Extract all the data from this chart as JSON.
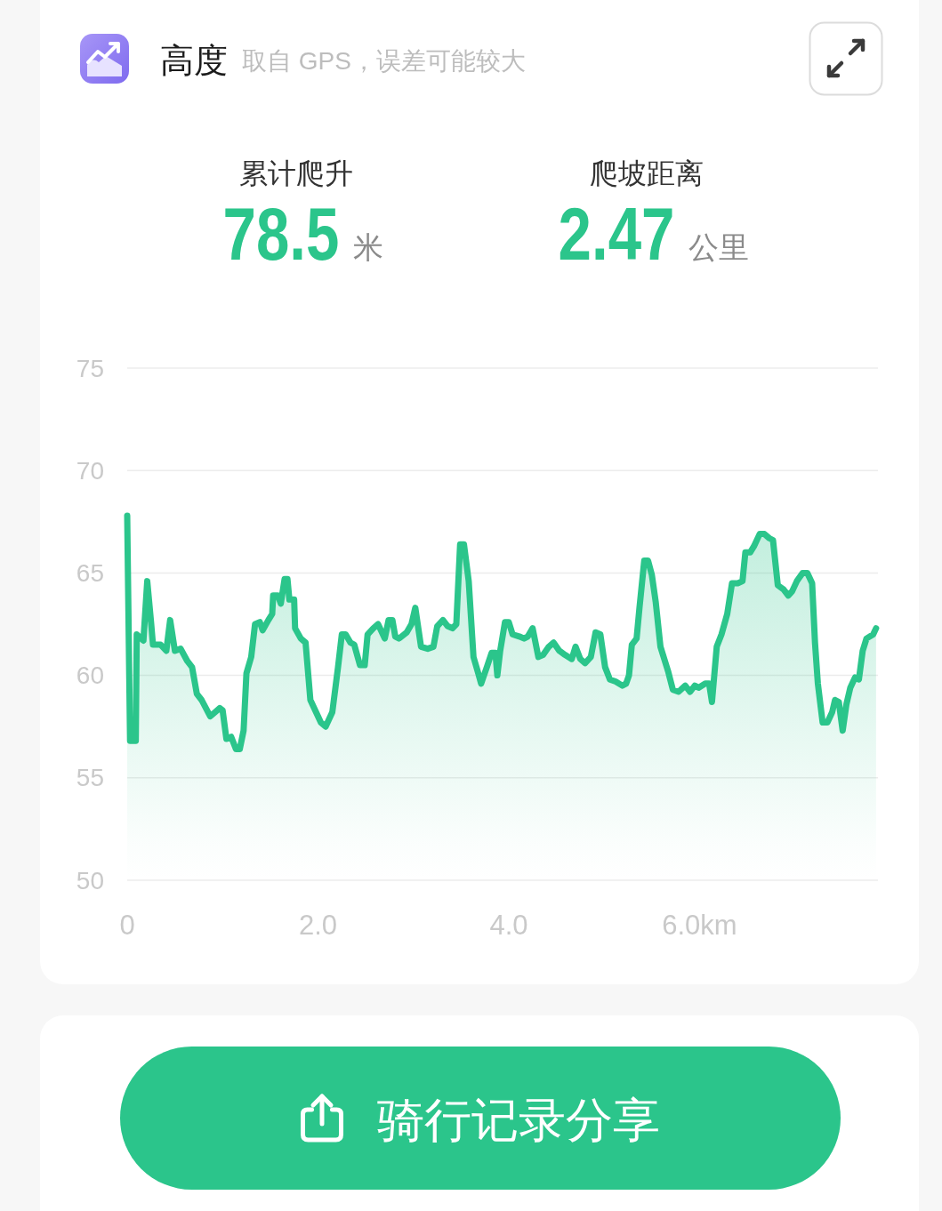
{
  "chart_data": {
    "type": "area",
    "title": "高度",
    "subtitle": "取自 GPS，误差可能较大",
    "annotations": [
      "累计爬升",
      "78.5",
      "米",
      "爬坡距离",
      "2.47",
      "公里",
      "骑行记录分享"
    ],
    "x": [
      0,
      0.03,
      0.09,
      0.1,
      0.17,
      0.21,
      0.25,
      0.27,
      0.35,
      0.41,
      0.45,
      0.5,
      0.56,
      0.63,
      0.68,
      0.73,
      0.78,
      0.87,
      0.92,
      0.97,
      1.0,
      1.04,
      1.09,
      1.14,
      1.18,
      1.22,
      1.25,
      1.3,
      1.34,
      1.39,
      1.42,
      1.48,
      1.52,
      1.53,
      1.58,
      1.61,
      1.65,
      1.68,
      1.7,
      1.75,
      1.76,
      1.82,
      1.87,
      1.92,
      2.03,
      2.08,
      2.15,
      2.21,
      2.25,
      2.29,
      2.34,
      2.38,
      2.44,
      2.49,
      2.52,
      2.58,
      2.63,
      2.7,
      2.74,
      2.78,
      2.81,
      2.85,
      2.93,
      2.98,
      3.02,
      3.08,
      3.15,
      3.21,
      3.25,
      3.31,
      3.36,
      3.41,
      3.45,
      3.49,
      3.53,
      3.58,
      3.63,
      3.68,
      3.71,
      3.77,
      3.82,
      3.86,
      3.88,
      3.91,
      3.96,
      4.0,
      4.04,
      4.11,
      4.16,
      4.2,
      4.25,
      4.31,
      4.36,
      4.42,
      4.47,
      4.53,
      4.59,
      4.66,
      4.7,
      4.75,
      4.8,
      4.86,
      4.91,
      4.96,
      5.01,
      5.06,
      5.12,
      5.19,
      5.23,
      5.26,
      5.29,
      5.34,
      5.37,
      5.42,
      5.46,
      5.5,
      5.54,
      5.59,
      5.67,
      5.72,
      5.78,
      5.85,
      5.9,
      5.95,
      5.99,
      6.06,
      6.1,
      6.13,
      6.18,
      6.23,
      6.29,
      6.34,
      6.4,
      6.45,
      6.48,
      6.53,
      6.57,
      6.63,
      6.68,
      6.73,
      6.77,
      6.82,
      6.88,
      6.93,
      6.97,
      7.02,
      7.08,
      7.13,
      7.18,
      7.21,
      7.24,
      7.29,
      7.34,
      7.39,
      7.42,
      7.46,
      7.5,
      7.54,
      7.58,
      7.63,
      7.67,
      7.71,
      7.75,
      7.82,
      7.85
    ],
    "values": [
      67.8,
      56.8,
      56.8,
      62.0,
      61.7,
      64.6,
      62.6,
      61.5,
      61.5,
      61.2,
      62.7,
      61.2,
      61.3,
      60.7,
      60.4,
      59.1,
      58.8,
      58.0,
      58.2,
      58.4,
      58.3,
      56.9,
      57.0,
      56.4,
      56.4,
      57.3,
      60.1,
      60.9,
      62.5,
      62.6,
      62.2,
      62.7,
      63.0,
      63.9,
      63.9,
      63.5,
      64.7,
      64.7,
      63.7,
      63.7,
      62.3,
      61.8,
      61.6,
      58.8,
      57.7,
      57.5,
      58.2,
      60.4,
      62.0,
      62.0,
      61.6,
      61.5,
      60.5,
      60.5,
      62.0,
      62.3,
      62.5,
      61.8,
      62.7,
      62.7,
      61.9,
      61.8,
      62.1,
      62.5,
      63.3,
      61.4,
      61.3,
      61.4,
      62.4,
      62.7,
      62.4,
      62.3,
      62.5,
      66.4,
      66.4,
      64.6,
      60.9,
      60.1,
      59.6,
      60.4,
      61.1,
      61.1,
      60.0,
      61.2,
      62.6,
      62.6,
      62.0,
      61.9,
      61.8,
      61.9,
      62.3,
      60.9,
      61.0,
      61.4,
      61.6,
      61.2,
      61.0,
      60.8,
      61.4,
      60.8,
      60.6,
      60.9,
      62.1,
      62.0,
      60.4,
      59.8,
      59.7,
      59.5,
      59.6,
      60.0,
      61.5,
      61.8,
      63.3,
      65.6,
      65.6,
      64.9,
      63.6,
      61.4,
      60.2,
      59.3,
      59.2,
      59.5,
      59.2,
      59.5,
      59.4,
      59.6,
      59.6,
      58.7,
      61.4,
      62.0,
      63.0,
      64.5,
      64.5,
      64.6,
      66.0,
      66.0,
      66.3,
      66.9,
      66.9,
      66.7,
      66.6,
      64.4,
      64.2,
      63.9,
      64.1,
      64.6,
      65.0,
      65.0,
      64.5,
      61.6,
      59.6,
      57.7,
      57.7,
      58.2,
      58.8,
      58.7,
      57.3,
      58.6,
      59.4,
      59.9,
      59.8,
      61.2,
      61.8,
      62.0,
      62.3
    ],
    "color": "#2bc58b",
    "xlim": [
      0,
      7.87
    ],
    "xticks": [
      0,
      {
        "value": 2,
        "label": "2.0"
      },
      {
        "value": 4,
        "label": "4.0"
      },
      {
        "value": 6,
        "label": "6.0km"
      }
    ],
    "ylim": [
      50,
      75
    ],
    "yticks": [
      50,
      55,
      60,
      65,
      70,
      75
    ],
    "grid": "y"
  }
}
